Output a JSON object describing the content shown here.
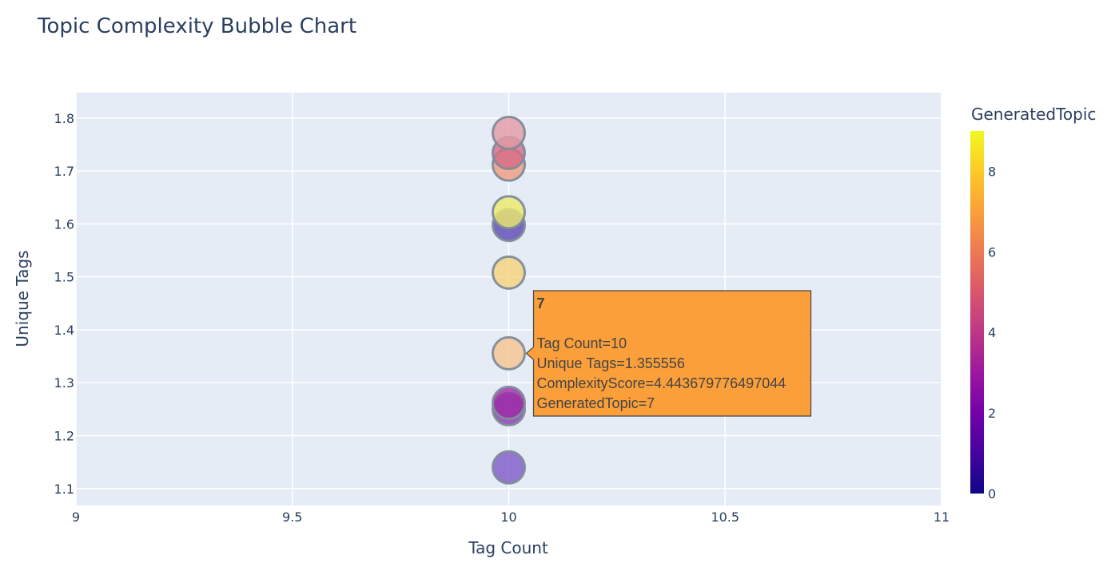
{
  "chart_data": {
    "type": "scatter",
    "title": "Topic Complexity Bubble Chart",
    "xlabel": "Tag Count",
    "ylabel": "Unique Tags",
    "xlim": [
      9,
      11
    ],
    "ylim": [
      1.068,
      1.848
    ],
    "x_ticks": [
      9,
      9.5,
      10,
      10.5,
      11
    ],
    "x_tick_labels": [
      "9",
      "9.5",
      "10",
      "10.5",
      "11"
    ],
    "y_ticks": [
      1.1,
      1.2,
      1.3,
      1.4,
      1.5,
      1.6,
      1.7,
      1.8
    ],
    "y_tick_labels": [
      "1.1",
      "1.2",
      "1.3",
      "1.4",
      "1.5",
      "1.6",
      "1.7",
      "1.8"
    ],
    "grid": true,
    "colorbar": {
      "title": "GeneratedTopic",
      "min": 0,
      "max": 9,
      "ticks": [
        0,
        2,
        4,
        6,
        8
      ],
      "tick_labels": [
        "0",
        "2",
        "4",
        "6",
        "8"
      ],
      "colorscale": [
        "#0d0887",
        "#46039f",
        "#7201a8",
        "#9c179e",
        "#bd3786",
        "#d8576b",
        "#ed7953",
        "#fb9f3a",
        "#fdca26",
        "#f0f921"
      ]
    },
    "points": [
      {
        "topic": 1,
        "x": 10,
        "y": 1.14,
        "color": "#7e57c9"
      },
      {
        "topic": 3,
        "x": 10,
        "y": 1.25,
        "color": "#8a3ab0"
      },
      {
        "topic": 3,
        "x": 10,
        "y": 1.262,
        "color": "#9c2aa8"
      },
      {
        "topic": 7,
        "x": 10,
        "y": 1.355556,
        "color": "#f7c48f"
      },
      {
        "topic": 8,
        "x": 10,
        "y": 1.508,
        "color": "#f6d37a"
      },
      {
        "topic": 1,
        "x": 10,
        "y": 1.598,
        "color": "#5b48b5"
      },
      {
        "topic": 9,
        "x": 10,
        "y": 1.622,
        "color": "#eeea6a"
      },
      {
        "topic": 6,
        "x": 10,
        "y": 1.712,
        "color": "#f09a80"
      },
      {
        "topic": 5,
        "x": 10,
        "y": 1.734,
        "color": "#d56c87"
      },
      {
        "topic": 5,
        "x": 10,
        "y": 1.772,
        "color": "#e39aa6"
      }
    ],
    "hover": {
      "header": "7",
      "lines": [
        "Tag Count=10",
        "Unique Tags=1.355556",
        "ComplexityScore=4.443679776497044",
        "GeneratedTopic=7"
      ],
      "x": 10,
      "y": 1.355556,
      "background": "#fb9f3a"
    }
  }
}
